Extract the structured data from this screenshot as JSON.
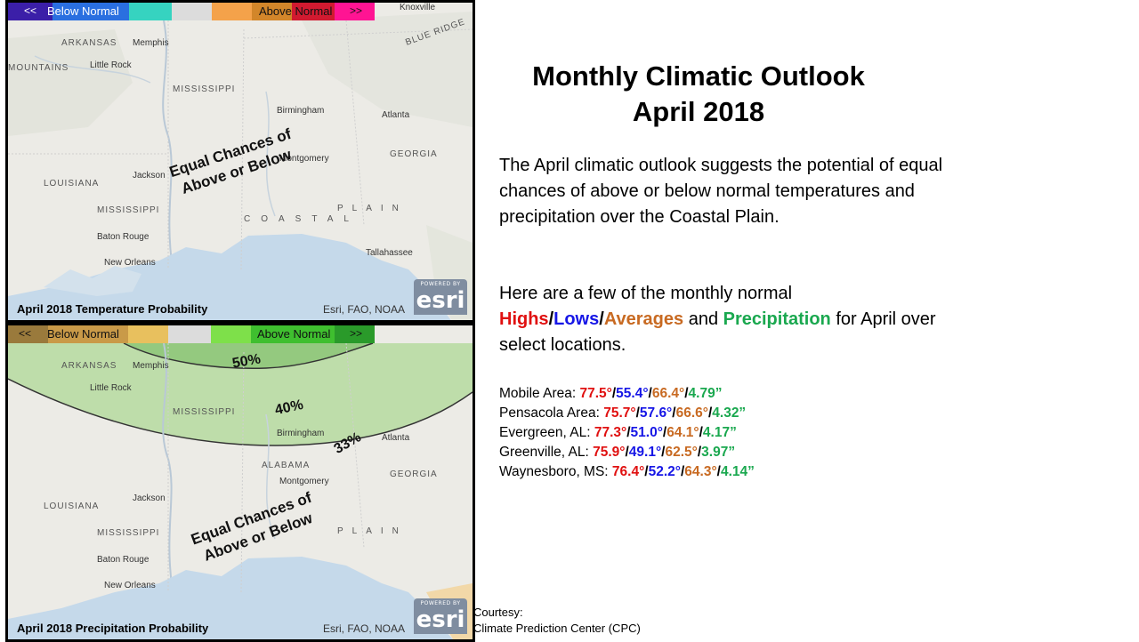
{
  "title": {
    "line1": "Monthly Climatic Outlook",
    "line2": "April 2018"
  },
  "intro_text": "The April climatic outlook suggests the potential of equal chances of above or below normal temperatures and precipitation over the Coastal Plain.",
  "normals_intro": {
    "prefix": "Here are a few of the monthly normal",
    "highs": "Highs",
    "sep": "/",
    "lows": "Lows",
    "averages": "Averages",
    "and": " and ",
    "precipitation": "Precipitation",
    "suffix": " for April over select locations."
  },
  "stations": [
    {
      "name": "Mobile Area: ",
      "high": "77.5°",
      "low": "55.4°",
      "avg": "66.4°",
      "precip": "4.79”"
    },
    {
      "name": "Pensacola Area: ",
      "high": "75.7°",
      "low": "57.6°",
      "avg": "66.6°",
      "precip": "4.32”"
    },
    {
      "name": "Evergreen, AL: ",
      "high": "77.3°",
      "low": "51.0°",
      "avg": "64.1°",
      "precip": "4.17”"
    },
    {
      "name": "Greenville, AL: ",
      "high": "75.9°",
      "low": "49.1°",
      "avg": "62.5°",
      "precip": "3.97”"
    },
    {
      "name": "Waynesboro, MS: ",
      "high": "76.4°",
      "low": "52.2°",
      "avg": "64.3°",
      "precip": "4.14”"
    }
  ],
  "courtesy": {
    "line1": "Courtesy:",
    "line2": "Climate Prediction Center (CPC)"
  },
  "temp_map": {
    "caption": "April 2018 Temperature Probability",
    "credit": "Esri, FAO, NOAA",
    "legend": {
      "left_arrow": "<<",
      "below": "Below Normal",
      "above": "Above Normal",
      "right_arrow": ">>"
    },
    "overlay": {
      "line1": "Equal Chances of",
      "line2": "Above or Below"
    },
    "legend_colors": [
      "#3b1fa8",
      "#2a6fe0",
      "#36d3c0",
      "#dcdcdc",
      "#f4a24a",
      "#d2862a",
      "#d11a30",
      "#ff1493"
    ]
  },
  "precip_map": {
    "caption": "April 2018 Precipitation Probability",
    "credit": "Esri, FAO, NOAA",
    "legend": {
      "left_arrow": "<<",
      "below": "Below Normal",
      "above": "Above Normal",
      "right_arrow": ">>"
    },
    "overlay": {
      "line1": "Equal Chances of",
      "line2": "Above or Below"
    },
    "contours": [
      "50%",
      "40%",
      "33%"
    ],
    "legend_colors": [
      "#9a7a3c",
      "#c99a48",
      "#e8c05e",
      "#dcdcdc",
      "#7ee04a",
      "#3fbf2f",
      "#2a9a2a"
    ]
  },
  "map_places": {
    "cities": [
      "Memphis",
      "Little Rock",
      "Birmingham",
      "Atlanta",
      "Montgomery",
      "Jackson",
      "Baton Rouge",
      "New Orleans",
      "Tallahassee",
      "Knoxville"
    ],
    "states": [
      "ARKANSAS",
      "MISSISSIPPI",
      "ALABAMA",
      "GEORGIA",
      "LOUISIANA"
    ],
    "other": [
      "MOUNTAINS",
      "COASTAL",
      "PLAIN",
      "BLUE RIDGE"
    ]
  },
  "esri_logo": {
    "top": "POWERED BY",
    "name": "esri"
  }
}
